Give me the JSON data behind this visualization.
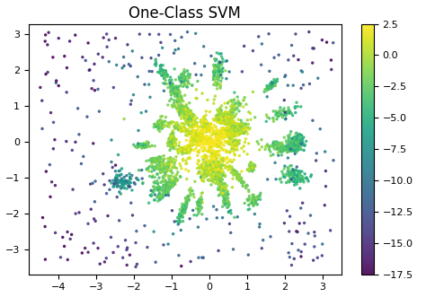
{
  "title": "One-Class SVM",
  "xlim": [
    -4.8,
    3.5
  ],
  "ylim": [
    -3.7,
    3.3
  ],
  "xticks": [
    -4,
    -3,
    -2,
    -1,
    0,
    1,
    2,
    3
  ],
  "yticks": [
    -3,
    -2,
    -1,
    0,
    1,
    2,
    3
  ],
  "cmap": "viridis",
  "vmin": -17.5,
  "vmax": 2.5,
  "colorbar_ticks": [
    2.5,
    0.0,
    -2.5,
    -5.0,
    -7.5,
    -10.0,
    -12.5,
    -15.0,
    -17.5
  ],
  "seed": 42,
  "title_fontsize": 12,
  "tick_fontsize": 8,
  "point_size": 6,
  "background_color": "#ffffff"
}
